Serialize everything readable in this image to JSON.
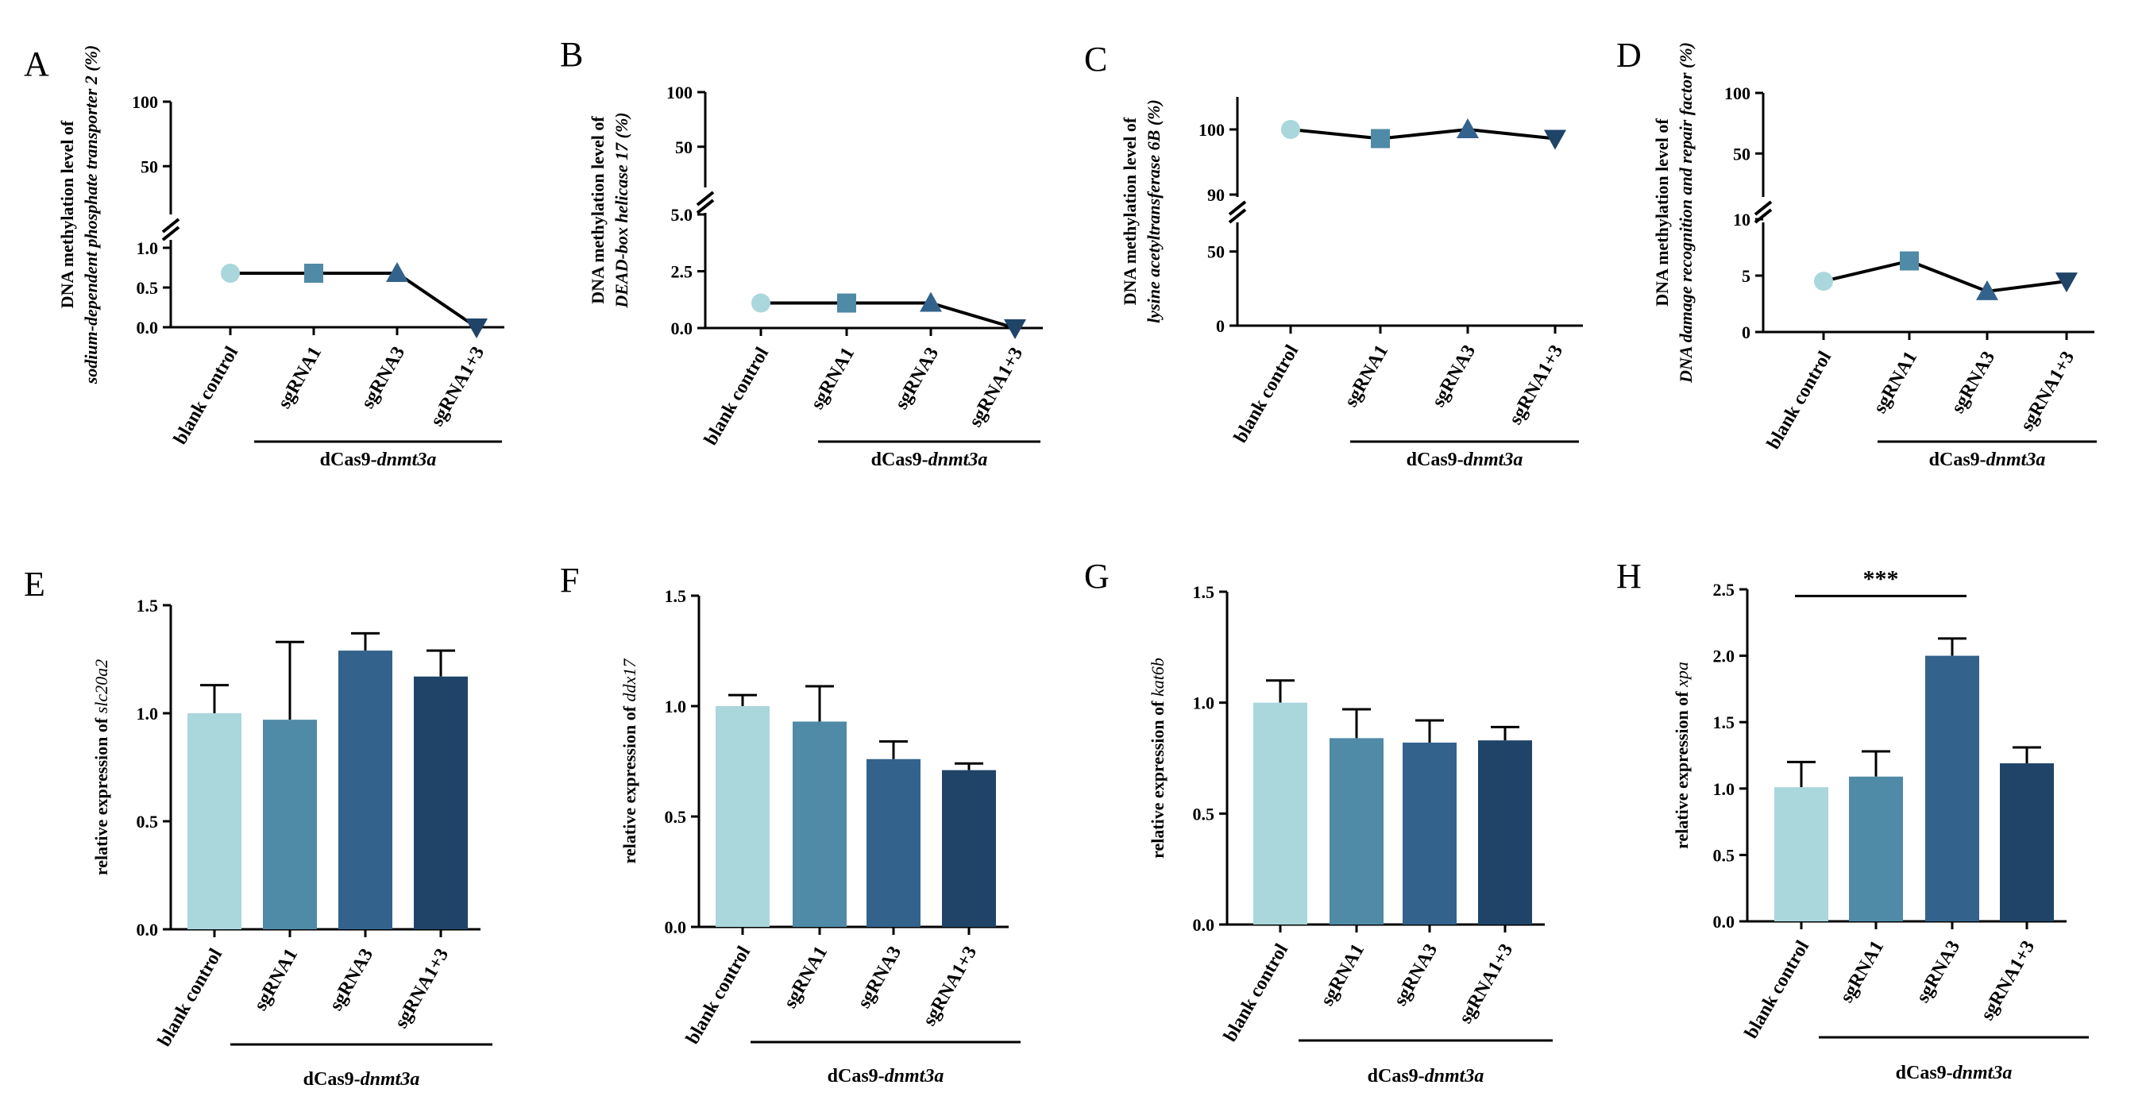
{
  "colors": {
    "blank_control": "#a9d7db",
    "sgRNA1": "#4f8aa7",
    "sgRNA3": "#33638c",
    "sgRNA1_3": "#1f4468",
    "axis": "#000000"
  },
  "group_label": {
    "prefix": "dCas9-",
    "gene": "dnmt3a"
  },
  "chart_data": [
    {
      "panel": "A",
      "type": "line",
      "categories": [
        "blank control",
        "sgRNA1",
        "sgRNA3",
        "sgRNA1+3"
      ],
      "values": [
        0.68,
        0.68,
        0.68,
        0.0
      ],
      "ylabel_line1": "DNA methylation level of",
      "ylabel_line2": "sodium-dependent phosphate transporter 2 (%)",
      "axis_break": true,
      "lower_ticks": [
        "0.0",
        "0.5",
        "1.0"
      ],
      "lower_range": [
        0,
        1.0
      ],
      "upper_ticks": [
        "50",
        "100"
      ],
      "upper_range": [
        20,
        100
      ]
    },
    {
      "panel": "B",
      "type": "line",
      "categories": [
        "blank control",
        "sgRNA1",
        "sgRNA3",
        "sgRNA1+3"
      ],
      "values": [
        1.1,
        1.1,
        1.1,
        0.0
      ],
      "ylabel_line1": "DNA methylation level of",
      "ylabel_line2": "DEAD-box helicase 17 (%)",
      "axis_break": true,
      "lower_ticks": [
        "0.0",
        "2.5",
        "5.0"
      ],
      "lower_range": [
        0,
        5.0
      ],
      "upper_ticks": [
        "50",
        "100"
      ],
      "upper_range": [
        20,
        100
      ]
    },
    {
      "panel": "C",
      "type": "line",
      "categories": [
        "blank control",
        "sgRNA1",
        "sgRNA3",
        "sgRNA1+3"
      ],
      "values": [
        100,
        98.6,
        100,
        98.6
      ],
      "ylabel_line1": "DNA methylation level of",
      "ylabel_line2": "lysine acetyltransferase 6B (%)",
      "axis_break": true,
      "lower_ticks": [
        "0",
        "50"
      ],
      "lower_range": [
        0,
        75
      ],
      "upper_ticks": [
        "90",
        "100"
      ],
      "upper_range": [
        90,
        105
      ]
    },
    {
      "panel": "D",
      "type": "line",
      "categories": [
        "blank control",
        "sgRNA1",
        "sgRNA3",
        "sgRNA1+3"
      ],
      "values": [
        4.5,
        6.3,
        3.6,
        4.5
      ],
      "ylabel_line1": "DNA methylation level of",
      "ylabel_line2": "DNA damage recognition and repair factor (%)",
      "axis_break": true,
      "lower_ticks": [
        "0",
        "5",
        "10"
      ],
      "lower_range": [
        0,
        10
      ],
      "upper_ticks": [
        "50",
        "100"
      ],
      "upper_range": [
        20,
        100
      ]
    },
    {
      "panel": "E",
      "type": "bar",
      "categories": [
        "blank control",
        "sgRNA1",
        "sgRNA3",
        "sgRNA1+3"
      ],
      "values": [
        1.0,
        0.97,
        1.29,
        1.17
      ],
      "errors": [
        0.13,
        0.36,
        0.08,
        0.12
      ],
      "ylabel_prefix": "relative expression of ",
      "ylabel_gene": "slc20a2",
      "ylim": [
        0,
        1.5
      ],
      "yticks": [
        "0.0",
        "0.5",
        "1.0",
        "1.5"
      ]
    },
    {
      "panel": "F",
      "type": "bar",
      "categories": [
        "blank control",
        "sgRNA1",
        "sgRNA3",
        "sgRNA1+3"
      ],
      "values": [
        1.0,
        0.93,
        0.76,
        0.71
      ],
      "errors": [
        0.05,
        0.16,
        0.08,
        0.03
      ],
      "ylabel_prefix": "relative expression of ",
      "ylabel_gene": "ddx17",
      "ylim": [
        0,
        1.5
      ],
      "yticks": [
        "0.0",
        "0.5",
        "1.0",
        "1.5"
      ]
    },
    {
      "panel": "G",
      "type": "bar",
      "categories": [
        "blank control",
        "sgRNA1",
        "sgRNA3",
        "sgRNA1+3"
      ],
      "values": [
        1.0,
        0.84,
        0.82,
        0.83
      ],
      "errors": [
        0.1,
        0.13,
        0.1,
        0.06
      ],
      "ylabel_prefix": "relative expression of ",
      "ylabel_gene": "kat6b",
      "ylim": [
        0,
        1.5
      ],
      "yticks": [
        "0.0",
        "0.5",
        "1.0",
        "1.5"
      ]
    },
    {
      "panel": "H",
      "type": "bar",
      "categories": [
        "blank control",
        "sgRNA1",
        "sgRNA3",
        "sgRNA1+3"
      ],
      "values": [
        1.01,
        1.09,
        2.0,
        1.19
      ],
      "errors": [
        0.19,
        0.19,
        0.13,
        0.12
      ],
      "ylabel_prefix": "relative expression of ",
      "ylabel_gene": "xpa",
      "ylim": [
        0,
        2.5
      ],
      "yticks": [
        "0.0",
        "0.5",
        "1.0",
        "1.5",
        "2.0",
        "2.5"
      ],
      "significance": {
        "label": "***",
        "from": 0,
        "to": 2
      }
    }
  ]
}
